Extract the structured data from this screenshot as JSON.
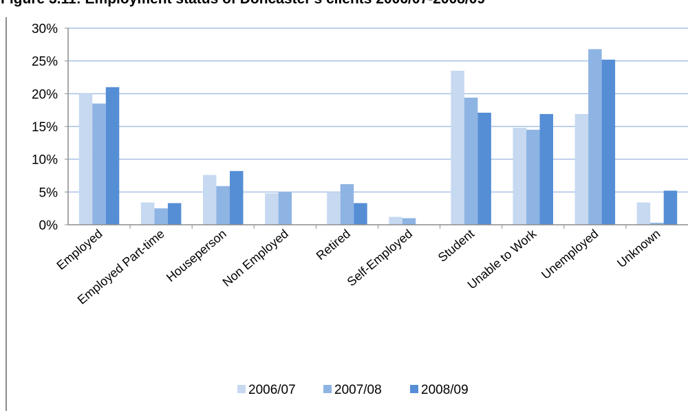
{
  "figure_caption": "Figure 3.11: Employment status of Doncaster's clients 2006/07-2008/09",
  "chart_data": {
    "type": "bar",
    "categories": [
      "Employed",
      "Employed Part-time",
      "Houseperson",
      "Non Employed",
      "Retired",
      "Self-Employed",
      "Student",
      "Unable to Work",
      "Unemployed",
      "Unknown"
    ],
    "series": [
      {
        "name": "2006/07",
        "color": "#c6d9f1",
        "values": [
          20.0,
          3.4,
          7.6,
          4.8,
          5.0,
          1.2,
          23.5,
          14.8,
          16.9,
          3.4
        ]
      },
      {
        "name": "2007/08",
        "color": "#8eb4e3",
        "values": [
          18.5,
          2.5,
          5.9,
          5.0,
          6.2,
          1.0,
          19.4,
          14.5,
          26.8,
          0.3
        ]
      },
      {
        "name": "2008/09",
        "color": "#558ed5",
        "values": [
          21.0,
          3.3,
          8.2,
          0.0,
          3.3,
          0.0,
          17.1,
          16.9,
          25.2,
          5.2
        ]
      }
    ],
    "yticks": [
      "0%",
      "5%",
      "10%",
      "15%",
      "20%",
      "25%",
      "30%"
    ],
    "ylim": [
      0,
      30
    ],
    "ystep": 5,
    "grid": true,
    "legend_position": "bottom",
    "gridline_color": "#a6c1e4",
    "axis_color": "#8c8c8c"
  }
}
